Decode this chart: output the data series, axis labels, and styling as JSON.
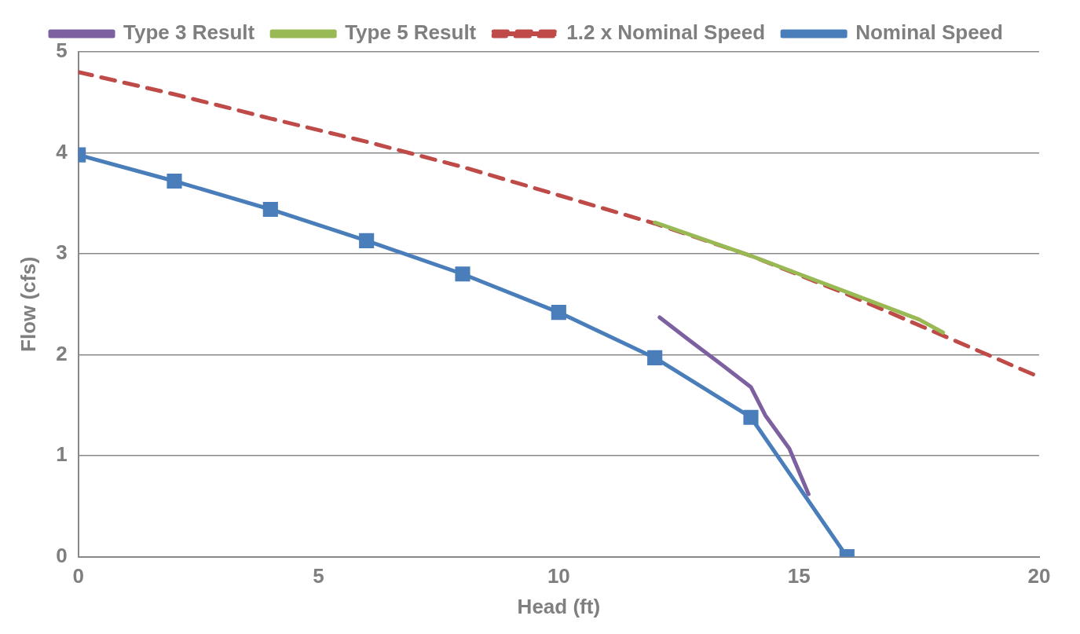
{
  "chart_data": {
    "type": "line",
    "xlabel": "Head (ft)",
    "ylabel": "Flow (cfs)",
    "xlim": [
      0,
      20
    ],
    "xticks": [
      0,
      5,
      10,
      15,
      20
    ],
    "ylim": [
      0,
      5
    ],
    "yticks": [
      0,
      1,
      2,
      3,
      4,
      5
    ],
    "grid": "y",
    "legend": "top",
    "series": [
      {
        "name": "Nominal Speed",
        "color": "#4a7ebb",
        "marker": "square",
        "line_style": "solid",
        "x": [
          0,
          2,
          4,
          6,
          8,
          10,
          12,
          14,
          16
        ],
        "values": [
          3.98,
          3.72,
          3.44,
          3.13,
          2.8,
          2.42,
          1.97,
          1.38,
          0
        ]
      },
      {
        "name": "1.2 x Nominal Speed",
        "color": "#be4b48",
        "marker": "none",
        "line_style": "dashed",
        "x": [
          0,
          2,
          4,
          6,
          8,
          10,
          12,
          14,
          16,
          18,
          20
        ],
        "values": [
          4.8,
          4.58,
          4.34,
          4.11,
          3.86,
          3.58,
          3.3,
          2.98,
          2.6,
          2.19,
          1.78
        ]
      },
      {
        "name": "Type 5 Result",
        "color": "#98b954",
        "marker": "none",
        "line_style": "solid",
        "x": [
          12,
          14,
          16,
          17.5,
          18
        ],
        "values": [
          3.31,
          2.98,
          2.62,
          2.35,
          2.22
        ]
      },
      {
        "name": "Type 3 Result",
        "color": "#7d60a0",
        "marker": "none",
        "line_style": "solid",
        "x": [
          12.1,
          12.7,
          13.4,
          14,
          14.3,
          14.8,
          15.2
        ],
        "values": [
          2.37,
          2.15,
          1.9,
          1.68,
          1.4,
          1.07,
          0.62
        ]
      }
    ]
  }
}
